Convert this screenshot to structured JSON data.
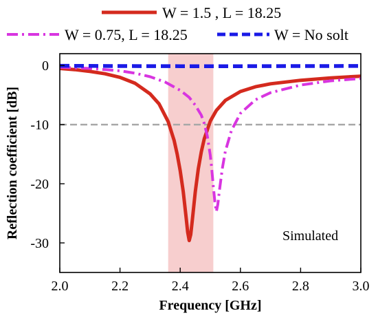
{
  "chart_data": {
    "type": "line",
    "xlabel": "Frequency [GHz]",
    "ylabel": "Reflection coefficient [dB]",
    "xlim": [
      2.0,
      3.0
    ],
    "ylim": [
      -35,
      2
    ],
    "xticks": [
      "2.0",
      "2.2",
      "2.4",
      "2.6",
      "2.8",
      "3.0"
    ],
    "yticks": [
      "0",
      "-10",
      "-20",
      "-30"
    ],
    "grid": false,
    "legend_position": "top",
    "annotation": "Simulated",
    "reference_line": {
      "y": -10,
      "color": "#a8a8a8"
    },
    "highlight_band": {
      "x": [
        2.36,
        2.51
      ],
      "color": "#f6c6c6"
    },
    "series": [
      {
        "name": "W = 1.5 , L = 18.25",
        "color": "#d42a1e",
        "style": "solid",
        "x": [
          2.0,
          2.05,
          2.1,
          2.15,
          2.2,
          2.25,
          2.3,
          2.33,
          2.36,
          2.38,
          2.39,
          2.4,
          2.41,
          2.42,
          2.425,
          2.43,
          2.435,
          2.44,
          2.45,
          2.46,
          2.47,
          2.48,
          2.5,
          2.52,
          2.55,
          2.6,
          2.65,
          2.7,
          2.8,
          2.9,
          3.0
        ],
        "y": [
          -0.5,
          -0.7,
          -1.0,
          -1.4,
          -2.0,
          -3.0,
          -4.8,
          -6.5,
          -9.5,
          -12.7,
          -15.0,
          -17.8,
          -21.3,
          -25.9,
          -28.2,
          -29.6,
          -28.6,
          -26.3,
          -21.4,
          -17.5,
          -14.6,
          -12.4,
          -9.4,
          -7.6,
          -5.9,
          -4.4,
          -3.6,
          -3.1,
          -2.5,
          -2.1,
          -1.8
        ]
      },
      {
        "name": "W = 0.75, L = 18.25",
        "color": "#d835e0",
        "style": "dashdot",
        "x": [
          2.0,
          2.1,
          2.2,
          2.25,
          2.3,
          2.35,
          2.4,
          2.43,
          2.45,
          2.47,
          2.48,
          2.49,
          2.5,
          2.505,
          2.51,
          2.515,
          2.52,
          2.525,
          2.53,
          2.54,
          2.55,
          2.57,
          2.6,
          2.65,
          2.7,
          2.8,
          2.9,
          3.0
        ],
        "y": [
          -0.3,
          -0.5,
          -0.9,
          -1.3,
          -1.9,
          -2.8,
          -4.2,
          -5.4,
          -6.7,
          -8.4,
          -9.8,
          -11.9,
          -15.2,
          -17.6,
          -20.5,
          -23.0,
          -24.7,
          -23.5,
          -21.3,
          -17.4,
          -14.5,
          -11.0,
          -8.1,
          -5.8,
          -4.6,
          -3.3,
          -2.6,
          -2.2
        ]
      },
      {
        "name": "W = No solt",
        "color": "#1a1ae6",
        "style": "dashed",
        "x": [
          2.0,
          2.2,
          2.4,
          2.5,
          2.6,
          2.8,
          3.0
        ],
        "y": [
          -0.05,
          -0.1,
          -0.12,
          -0.12,
          -0.12,
          -0.1,
          -0.08
        ]
      }
    ]
  }
}
